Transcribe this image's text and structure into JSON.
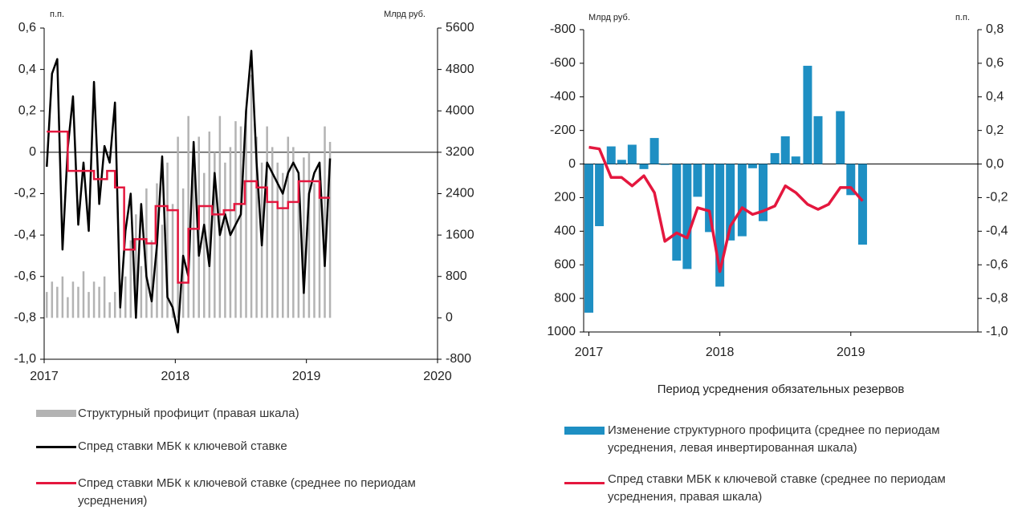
{
  "chart_data": [
    {
      "type": "combo",
      "ylabel": "п.п.",
      "y2label": "Млрд руб.",
      "xlim": [
        2017,
        2020
      ],
      "xticks": [
        2017,
        2018,
        2019,
        2020
      ],
      "ylim": [
        -1.0,
        0.6
      ],
      "yticks": [
        {
          "value": 0.6,
          "label": "0,6"
        },
        {
          "value": 0.4,
          "label": "0,4"
        },
        {
          "value": 0.2,
          "label": "0,2"
        },
        0,
        {
          "value": -0.2,
          "label": "-0,2"
        },
        {
          "value": -0.4,
          "label": "-0,4"
        },
        {
          "value": -0.6,
          "label": "-0,6"
        },
        {
          "value": -0.8,
          "label": "-0,8"
        },
        {
          "value": -1.0,
          "label": "-1,0"
        }
      ],
      "y2lim": [
        -800,
        5600
      ],
      "y2ticks": [
        5600,
        4800,
        4000,
        3200,
        2400,
        1600,
        800,
        0,
        -800
      ],
      "x": [
        2017.02,
        2017.06,
        2017.1,
        2017.14,
        2017.18,
        2017.22,
        2017.26,
        2017.3,
        2017.34,
        2017.38,
        2017.42,
        2017.46,
        2017.5,
        2017.54,
        2017.58,
        2017.62,
        2017.66,
        2017.7,
        2017.74,
        2017.78,
        2017.82,
        2017.86,
        2017.9,
        2017.94,
        2017.98,
        2018.02,
        2018.06,
        2018.1,
        2018.14,
        2018.18,
        2018.22,
        2018.26,
        2018.3,
        2018.34,
        2018.38,
        2018.42,
        2018.46,
        2018.5,
        2018.54,
        2018.58,
        2018.62,
        2018.66,
        2018.7,
        2018.74,
        2018.78,
        2018.82,
        2018.86,
        2018.9,
        2018.94,
        2018.98,
        2019.02,
        2019.06,
        2019.1,
        2019.14,
        2019.18
      ],
      "series": [
        {
          "name": "Структурный профицит (правая шкала)",
          "type": "bar",
          "axis": "y2",
          "color": "#b3b3b3",
          "values": [
            500,
            700,
            600,
            800,
            400,
            700,
            600,
            900,
            500,
            700,
            600,
            800,
            300,
            500,
            200,
            800,
            1500,
            2000,
            1000,
            2500,
            1500,
            2600,
            1800,
            3000,
            2200,
            3500,
            2500,
            3900,
            3000,
            3500,
            2800,
            3600,
            3200,
            3900,
            3000,
            3300,
            3800,
            3700,
            4000,
            4700,
            3500,
            3000,
            3700,
            3300,
            3000,
            2800,
            3500,
            3300,
            2400,
            3100,
            3200,
            2600,
            3000,
            3700,
            3400
          ]
        },
        {
          "name": "Спред ставки МБК к ключевой ставке",
          "type": "line",
          "color": "#000000",
          "values": [
            -0.07,
            0.38,
            0.45,
            -0.47,
            0.02,
            0.27,
            -0.35,
            -0.05,
            -0.38,
            0.34,
            -0.25,
            0.03,
            -0.05,
            0.24,
            -0.75,
            -0.38,
            -0.2,
            -0.8,
            -0.25,
            -0.6,
            -0.72,
            -0.45,
            -0.02,
            -0.7,
            -0.75,
            -0.87,
            -0.5,
            -0.6,
            0.05,
            -0.5,
            -0.35,
            -0.55,
            -0.1,
            -0.4,
            -0.3,
            -0.4,
            -0.35,
            -0.3,
            0.2,
            0.49,
            -0.05,
            -0.45,
            -0.05,
            -0.1,
            -0.15,
            -0.2,
            -0.1,
            -0.05,
            -0.1,
            -0.68,
            -0.2,
            -0.1,
            -0.05,
            -0.55,
            -0.03
          ]
        },
        {
          "name": "Спред ставки МБК к ключевой ставке (среднее по периодам усреднения)",
          "type": "step",
          "color": "#e4173e",
          "x": [
            2017.02,
            2017.18,
            2017.38,
            2017.48,
            2017.54,
            2017.61,
            2017.69,
            2017.78,
            2017.85,
            2017.94,
            2018.02,
            2018.1,
            2018.18,
            2018.28,
            2018.37,
            2018.45,
            2018.53,
            2018.62,
            2018.7,
            2018.78,
            2018.86,
            2018.94,
            2019.1
          ],
          "values": [
            0.1,
            -0.09,
            -0.13,
            -0.09,
            -0.17,
            -0.47,
            -0.42,
            -0.44,
            -0.26,
            -0.28,
            -0.63,
            -0.37,
            -0.26,
            -0.3,
            -0.28,
            -0.25,
            -0.14,
            -0.17,
            -0.24,
            -0.27,
            -0.24,
            -0.14,
            -0.22
          ]
        }
      ]
    },
    {
      "type": "combo",
      "ylabel": "Млрд руб.",
      "y2label": "п.п.",
      "xlabel": "Период усреднения обязательных резервов",
      "xlim": [
        2016.96,
        2019.97
      ],
      "xticks": [
        2017,
        2018,
        2019
      ],
      "ylim": [
        1000,
        -800
      ],
      "yticks": [
        -800,
        -600,
        -400,
        -200,
        0,
        200,
        400,
        600,
        800,
        1000
      ],
      "y2lim": [
        -1.0,
        0.8
      ],
      "y2ticks": [
        {
          "value": 0.8,
          "label": "0,8"
        },
        {
          "value": 0.6,
          "label": "0,6"
        },
        {
          "value": 0.4,
          "label": "0,4"
        },
        {
          "value": 0.2,
          "label": "0,2"
        },
        {
          "value": 0.0,
          "label": "0,0"
        },
        {
          "value": -0.2,
          "label": "-0,2"
        },
        {
          "value": -0.4,
          "label": "-0,4"
        },
        {
          "value": -0.6,
          "label": "-0,6"
        },
        {
          "value": -0.8,
          "label": "-0,8"
        },
        {
          "value": -1.0,
          "label": "-1,0"
        }
      ],
      "x": [
        2017.0,
        2017.08,
        2017.17,
        2017.25,
        2017.33,
        2017.42,
        2017.5,
        2017.58,
        2017.67,
        2017.75,
        2017.83,
        2017.92,
        2018.0,
        2018.08,
        2018.17,
        2018.25,
        2018.33,
        2018.42,
        2018.5,
        2018.58,
        2018.67,
        2018.75,
        2018.83,
        2018.92,
        2019.0,
        2019.09
      ],
      "series": [
        {
          "name": "Изменение структурного профицита (среднее по периодам усреднения, левая инвертированная шкала)",
          "type": "bar",
          "color": "#1e8fc3",
          "values": [
            885,
            370,
            -105,
            -25,
            -115,
            30,
            -155,
            5,
            575,
            625,
            195,
            405,
            730,
            455,
            430,
            25,
            340,
            -65,
            -165,
            -45,
            -585,
            -285,
            null,
            -315,
            185,
            480
          ]
        },
        {
          "name": "Спред ставки МБК к ключевой ставке (среднее по периодам усреднения, правая шкала)",
          "type": "line",
          "axis": "y2",
          "color": "#e4173e",
          "values": [
            0.1,
            0.09,
            -0.08,
            -0.08,
            -0.13,
            -0.07,
            -0.17,
            -0.46,
            -0.41,
            -0.44,
            -0.26,
            -0.28,
            -0.64,
            -0.37,
            -0.26,
            -0.3,
            -0.28,
            -0.25,
            -0.13,
            -0.17,
            -0.24,
            -0.27,
            -0.24,
            -0.14,
            -0.14,
            -0.22
          ]
        }
      ]
    }
  ]
}
